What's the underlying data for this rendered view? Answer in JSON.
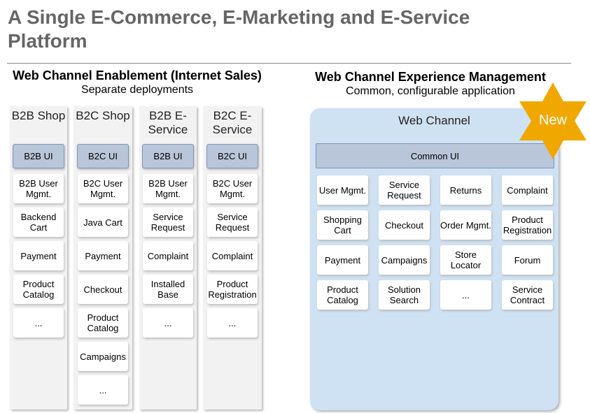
{
  "title": "A Single E-Commerce, E-Marketing and E-Service Platform",
  "left": {
    "heading": "Web Channel Enablement (Internet Sales)",
    "subheading": "Separate deployments",
    "columns": [
      {
        "title": "B2B Shop",
        "items": [
          "B2B UI",
          "B2B User Mgmt.",
          "Backend Cart",
          "Payment",
          "Product Catalog",
          "..."
        ]
      },
      {
        "title": "B2C Shop",
        "items": [
          "B2C UI",
          "B2C User Mgmt.",
          "Java Cart",
          "Payment",
          "Checkout",
          "Product Catalog",
          "Campaigns",
          "..."
        ]
      },
      {
        "title": "B2B E-Service",
        "items": [
          "B2B UI",
          "B2B User Mgmt.",
          "Service Request",
          "Complaint",
          "Installed Base",
          "..."
        ]
      },
      {
        "title": "B2C E-Service",
        "items": [
          "B2C UI",
          "B2C User Mgmt.",
          "Service Request",
          "Complaint",
          "Product Registration",
          "..."
        ]
      }
    ]
  },
  "right": {
    "heading": "Web Channel Experience Management",
    "subheading": "Common, configurable application",
    "panel_title": "Web Channel",
    "common_ui": "Common UI",
    "badge": "New",
    "badge_color": "#f0a800",
    "items": [
      "User Mgmt.",
      "Service Request",
      "Returns",
      "Complaint",
      "Shopping Cart",
      "Checkout",
      "Order Mgmt.",
      "Product Registration",
      "Payment",
      "Campaigns",
      "Store Locator",
      "Forum",
      "Product Catalog",
      "Solution Search",
      "...",
      "Service Contract"
    ]
  }
}
